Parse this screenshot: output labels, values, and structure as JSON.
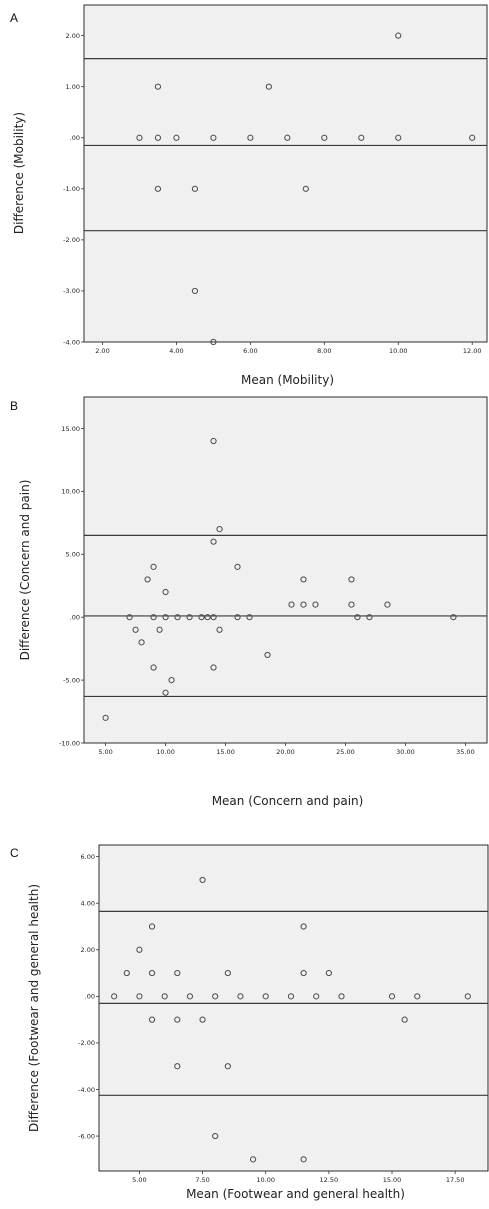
{
  "chart_data": [
    {
      "type": "scatter",
      "panel_label": "A",
      "xlabel": "Mean (Mobility)",
      "ylabel": "Difference (Mobility)",
      "xlim": [
        1.5,
        12.4
      ],
      "ylim": [
        -4.0,
        2.6
      ],
      "x_ticks": [
        2,
        4,
        6,
        8,
        10,
        12
      ],
      "x_tick_labels": [
        "2.00",
        "4.00",
        "6.00",
        "8.00",
        "10.00",
        "12.00"
      ],
      "y_ticks": [
        2,
        1,
        0,
        -1,
        -2,
        -3,
        -4
      ],
      "y_tick_labels": [
        "2.00",
        "1.00",
        ".00",
        "-1.00",
        "-2.00",
        "-3.00",
        "-4.00"
      ],
      "hlines": [
        1.55,
        -0.15,
        -1.82
      ],
      "points": [
        [
          3.0,
          0
        ],
        [
          3.5,
          1
        ],
        [
          3.5,
          0
        ],
        [
          3.5,
          -1
        ],
        [
          4.0,
          0
        ],
        [
          4.5,
          -1
        ],
        [
          4.5,
          -3
        ],
        [
          5.0,
          0
        ],
        [
          5.0,
          -4
        ],
        [
          6.0,
          0
        ],
        [
          6.5,
          1
        ],
        [
          7.0,
          0
        ],
        [
          7.5,
          -1
        ],
        [
          8.0,
          0
        ],
        [
          9.0,
          0
        ],
        [
          10.0,
          2
        ],
        [
          10.0,
          0
        ],
        [
          12.0,
          0
        ]
      ]
    },
    {
      "type": "scatter",
      "panel_label": "B",
      "xlabel": "Mean (Concern and pain)",
      "ylabel": "Difference (Concern and pain)",
      "xlim": [
        3.2,
        36.8
      ],
      "ylim": [
        -10.0,
        17.5
      ],
      "x_ticks": [
        5,
        10,
        15,
        20,
        25,
        30,
        35
      ],
      "x_tick_labels": [
        "5.00",
        "10.00",
        "15.00",
        "20.00",
        "25.00",
        "30.00",
        "35.00"
      ],
      "y_ticks": [
        15,
        10,
        5,
        0,
        -5,
        -10
      ],
      "y_tick_labels": [
        "15.00",
        "10.00",
        "5.00",
        ".00",
        "-5.00",
        "-10.00"
      ],
      "hlines": [
        6.5,
        0.1,
        -6.3
      ],
      "points": [
        [
          5.0,
          -8
        ],
        [
          7.0,
          0
        ],
        [
          7.5,
          -1
        ],
        [
          8.0,
          -2
        ],
        [
          8.5,
          3
        ],
        [
          9.0,
          4
        ],
        [
          9.0,
          0
        ],
        [
          9.0,
          -4
        ],
        [
          9.5,
          -1
        ],
        [
          10.0,
          2
        ],
        [
          10.0,
          0
        ],
        [
          10.0,
          -6
        ],
        [
          10.5,
          -5
        ],
        [
          11.0,
          0
        ],
        [
          12.0,
          0
        ],
        [
          13.0,
          0
        ],
        [
          13.5,
          0
        ],
        [
          14.0,
          14
        ],
        [
          14.0,
          6
        ],
        [
          14.0,
          0
        ],
        [
          14.0,
          -4
        ],
        [
          14.5,
          7
        ],
        [
          14.5,
          -1
        ],
        [
          16.0,
          4
        ],
        [
          16.0,
          0
        ],
        [
          17.0,
          0
        ],
        [
          18.5,
          -3
        ],
        [
          20.5,
          1
        ],
        [
          21.5,
          3
        ],
        [
          21.5,
          1
        ],
        [
          22.5,
          1
        ],
        [
          25.5,
          3
        ],
        [
          25.5,
          1
        ],
        [
          26.0,
          0
        ],
        [
          27.0,
          0
        ],
        [
          28.5,
          1
        ],
        [
          34.0,
          0
        ]
      ]
    },
    {
      "type": "scatter",
      "panel_label": "C",
      "xlabel": "Mean (Footwear and general health)",
      "ylabel": "Difference (Footwear and general health)",
      "xlim": [
        3.4,
        18.8
      ],
      "ylim": [
        -7.5,
        6.5
      ],
      "x_ticks": [
        5,
        7.5,
        10,
        12.5,
        15,
        17.5
      ],
      "x_tick_labels": [
        "5.00",
        "7.50",
        "10.00",
        "12.50",
        "15.00",
        "17.50"
      ],
      "y_ticks": [
        6,
        4,
        2,
        0,
        -2,
        -4,
        -6
      ],
      "y_tick_labels": [
        "6.00",
        "4.00",
        "2.00",
        ".00",
        "-2.00",
        "-4.00",
        "-6.00"
      ],
      "hlines": [
        3.65,
        -0.3,
        -4.25
      ],
      "points": [
        [
          4.0,
          0
        ],
        [
          4.5,
          1
        ],
        [
          5.0,
          2
        ],
        [
          5.0,
          0
        ],
        [
          5.5,
          3
        ],
        [
          5.5,
          1
        ],
        [
          5.5,
          -1
        ],
        [
          6.0,
          0
        ],
        [
          6.5,
          1
        ],
        [
          6.5,
          -1
        ],
        [
          6.5,
          -3
        ],
        [
          7.0,
          0
        ],
        [
          7.5,
          5
        ],
        [
          7.5,
          -1
        ],
        [
          8.0,
          0
        ],
        [
          8.0,
          -6
        ],
        [
          8.5,
          1
        ],
        [
          8.5,
          -3
        ],
        [
          9.0,
          0
        ],
        [
          9.5,
          -7
        ],
        [
          10.0,
          0
        ],
        [
          11.0,
          0
        ],
        [
          11.5,
          3
        ],
        [
          11.5,
          1
        ],
        [
          11.5,
          -7
        ],
        [
          12.0,
          0
        ],
        [
          12.5,
          1
        ],
        [
          13.0,
          0
        ],
        [
          15.0,
          0
        ],
        [
          15.5,
          -1
        ],
        [
          16.0,
          0
        ],
        [
          18.0,
          0
        ]
      ]
    }
  ]
}
